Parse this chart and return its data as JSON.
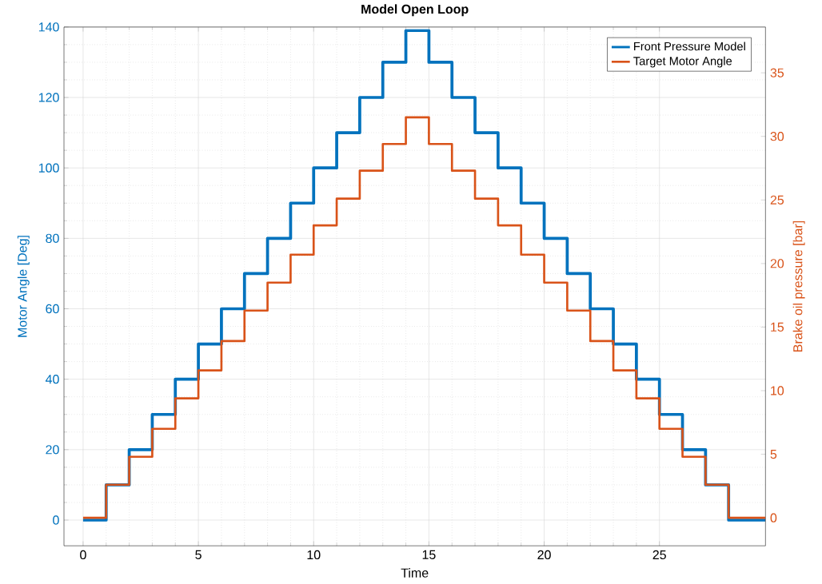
{
  "chart_data": {
    "type": "step",
    "title": "Model Open Loop",
    "xlabel": "Time",
    "ylabel": "Motor Angle [Deg]",
    "y2label": "Brake oil pressure [bar]",
    "xlim": [
      -0.83,
      29.6
    ],
    "xticks": [
      0,
      5,
      10,
      15,
      20,
      25
    ],
    "ylim": [
      -7.3,
      140
    ],
    "yticks": [
      0,
      20,
      40,
      60,
      80,
      100,
      120,
      140
    ],
    "y2lim": [
      -2.2,
      38.6
    ],
    "y2ticks": [
      0,
      5,
      10,
      15,
      20,
      25,
      30,
      35
    ],
    "grid": true,
    "legend": "top right",
    "series": [
      {
        "name": "Front Pressure Model",
        "color": "#0072bd",
        "x": [
          0,
          1,
          2,
          3,
          4,
          5,
          6,
          7,
          8,
          9,
          10,
          11,
          12,
          13,
          14,
          15,
          16,
          17,
          18,
          19,
          20,
          21,
          22,
          23,
          24,
          25,
          26,
          27,
          28,
          29.6
        ],
        "values": [
          0,
          10,
          20,
          30,
          40,
          50,
          60,
          70,
          80,
          90,
          100,
          110,
          120,
          130,
          139,
          130,
          120,
          110,
          100,
          90,
          80,
          70,
          60,
          50,
          40,
          30,
          20,
          10,
          0,
          0
        ]
      },
      {
        "name": "Target Motor Angle",
        "color": "#d95319",
        "axis": "y2",
        "x": [
          0,
          1,
          2,
          3,
          4,
          5,
          6,
          7,
          8,
          9,
          10,
          11,
          12,
          13,
          14,
          15,
          16,
          17,
          18,
          19,
          20,
          21,
          22,
          23,
          24,
          25,
          26,
          27,
          28,
          29.6
        ],
        "values": [
          0,
          2.6,
          4.8,
          7,
          9.4,
          11.6,
          13.9,
          16.3,
          18.5,
          20.7,
          23,
          25.1,
          27.3,
          29.4,
          31.5,
          29.4,
          27.3,
          25.1,
          23,
          20.7,
          18.5,
          16.3,
          13.9,
          11.6,
          9.4,
          7,
          4.8,
          2.6,
          0,
          0
        ]
      }
    ]
  }
}
